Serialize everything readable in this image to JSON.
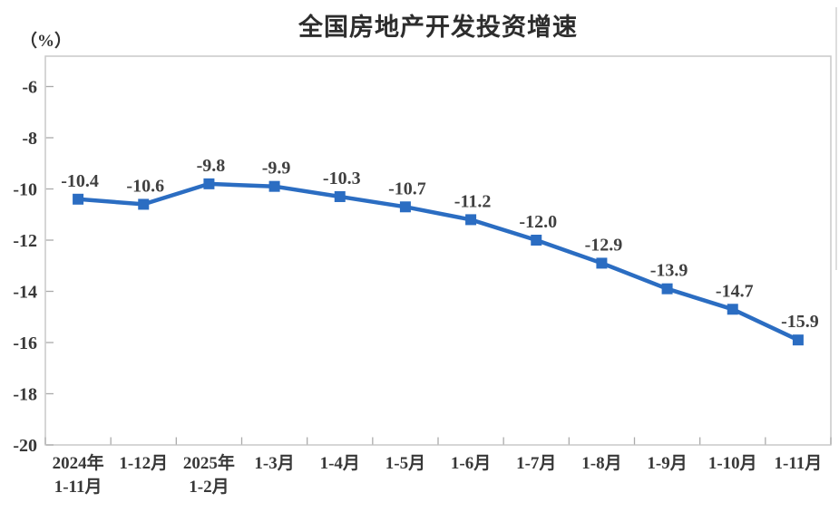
{
  "chart_data": {
    "type": "line",
    "title": "全国房地产开发投资增速",
    "unit": "（%）",
    "categories": [
      [
        "2024年",
        "1-11月"
      ],
      [
        "1-12月"
      ],
      [
        "2025年",
        "1-2月"
      ],
      [
        "1-3月"
      ],
      [
        "1-4月"
      ],
      [
        "1-5月"
      ],
      [
        "1-6月"
      ],
      [
        "1-7月"
      ],
      [
        "1-8月"
      ],
      [
        "1-9月"
      ],
      [
        "1-10月"
      ],
      [
        "1-11月"
      ]
    ],
    "values": [
      -10.4,
      -10.6,
      -9.8,
      -9.9,
      -10.3,
      -10.7,
      -11.2,
      -12.0,
      -12.9,
      -13.9,
      -14.7,
      -15.9
    ],
    "data_labels": [
      "-10.4",
      "-10.6",
      "-9.8",
      "-9.9",
      "-10.3",
      "-10.7",
      "-11.2",
      "-12.0",
      "-12.9",
      "-13.9",
      "-14.7",
      "-15.9"
    ],
    "y_ticks": [
      -6,
      -8,
      -10,
      -12,
      -14,
      -16,
      -18,
      -20
    ],
    "y_tick_labels": [
      "-6",
      "-8",
      "-10",
      "-12",
      "-14",
      "-16",
      "-18",
      "-20"
    ],
    "ylim": [
      -20,
      -5
    ],
    "grid": false,
    "legend": "none",
    "marker": "square",
    "colors": {
      "line": "#2B6DC2",
      "text": "#383838",
      "data_label": "#404040",
      "plot_border": "#C9C9C9",
      "tick": "#ABABAB"
    }
  }
}
